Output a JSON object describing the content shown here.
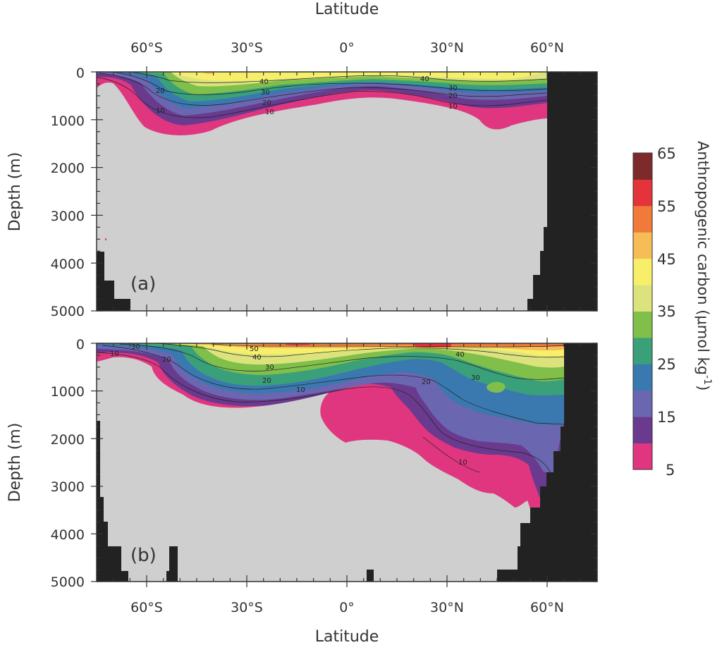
{
  "chart_data": [
    {
      "panel": "(a)",
      "type": "heatmap",
      "title": "",
      "xlabel": "Latitude",
      "ylabel": "Depth (m)",
      "xlim": [
        -75,
        75
      ],
      "ylim": [
        5000,
        0
      ],
      "x_tick_labels": [
        "60°S",
        "30°S",
        "0°",
        "30°N",
        "60°N"
      ],
      "y_tick_labels": [
        "0",
        "1000",
        "2000",
        "3000",
        "4000",
        "5000"
      ],
      "contour_labels": [
        "40",
        "30",
        "20",
        "10",
        "40",
        "30",
        "20",
        "10"
      ],
      "contours": [
        {
          "level": 40,
          "depths": [
            [
              -65,
              0
            ],
            [
              -55,
              40
            ],
            [
              -45,
              120
            ],
            [
              -30,
              140
            ],
            [
              -15,
              120
            ],
            [
              0,
              110
            ],
            [
              15,
              120
            ],
            [
              30,
              140
            ],
            [
              45,
              160
            ],
            [
              60,
              110
            ]
          ]
        },
        {
          "level": 30,
          "depths": [
            [
              -65,
              10
            ],
            [
              -55,
              150
            ],
            [
              -45,
              280
            ],
            [
              -30,
              340
            ],
            [
              -15,
              300
            ],
            [
              0,
              280
            ],
            [
              15,
              300
            ],
            [
              30,
              350
            ],
            [
              45,
              380
            ],
            [
              60,
              300
            ]
          ]
        },
        {
          "level": 20,
          "depths": [
            [
              -65,
              30
            ],
            [
              -55,
              300
            ],
            [
              -45,
              500
            ],
            [
              -30,
              580
            ],
            [
              -15,
              450
            ],
            [
              0,
              380
            ],
            [
              15,
              400
            ],
            [
              30,
              500
            ],
            [
              45,
              560
            ],
            [
              60,
              450
            ]
          ]
        },
        {
          "level": 10,
          "depths": [
            [
              -68,
              50
            ],
            [
              -58,
              400
            ],
            [
              -45,
              800
            ],
            [
              -30,
              820
            ],
            [
              -15,
              650
            ],
            [
              0,
              550
            ],
            [
              15,
              580
            ],
            [
              30,
              720
            ],
            [
              45,
              800
            ],
            [
              60,
              650
            ]
          ]
        },
        {
          "level": 5,
          "depths": [
            [
              -72,
              200
            ],
            [
              -62,
              650
            ],
            [
              -50,
              1300
            ],
            [
              -35,
              1250
            ],
            [
              -15,
              900
            ],
            [
              0,
              700
            ],
            [
              10,
              650
            ],
            [
              30,
              850
            ],
            [
              45,
              1200
            ],
            [
              60,
              950
            ]
          ]
        }
      ]
    },
    {
      "panel": "(b)",
      "type": "heatmap",
      "title": "",
      "xlabel": "Latitude",
      "ylabel": "Depth (m)",
      "xlim": [
        -75,
        75
      ],
      "ylim": [
        5000,
        0
      ],
      "x_tick_labels": [
        "60°S",
        "30°S",
        "0°",
        "30°N",
        "60°N"
      ],
      "y_tick_labels": [
        "0",
        "1000",
        "2000",
        "3000",
        "4000",
        "5000"
      ],
      "contour_labels": [
        "30",
        "10",
        "20",
        "50",
        "40",
        "30",
        "20",
        "10",
        "40",
        "30",
        "20",
        "10"
      ],
      "contours": [
        {
          "level": 50,
          "depths": [
            [
              -30,
              0
            ],
            [
              -20,
              40
            ],
            [
              0,
              20
            ],
            [
              20,
              30
            ],
            [
              40,
              40
            ],
            [
              64,
              20
            ]
          ]
        },
        {
          "level": 40,
          "depths": [
            [
              -55,
              0
            ],
            [
              -45,
              60
            ],
            [
              -30,
              200
            ],
            [
              -15,
              200
            ],
            [
              0,
              150
            ],
            [
              20,
              180
            ],
            [
              40,
              280
            ],
            [
              64,
              180
            ]
          ]
        },
        {
          "level": 30,
          "depths": [
            [
              -55,
              10
            ],
            [
              -45,
              250
            ],
            [
              -30,
              450
            ],
            [
              -15,
              350
            ],
            [
              0,
              300
            ],
            [
              20,
              420
            ],
            [
              40,
              700
            ],
            [
              64,
              650
            ]
          ]
        },
        {
          "level": 20,
          "depths": [
            [
              -60,
              20
            ],
            [
              -50,
              450
            ],
            [
              -35,
              800
            ],
            [
              -20,
              650
            ],
            [
              0,
              500
            ],
            [
              20,
              700
            ],
            [
              35,
              1400
            ],
            [
              64,
              1800
            ]
          ]
        },
        {
          "level": 10,
          "depths": [
            [
              -65,
              50
            ],
            [
              -55,
              700
            ],
            [
              -40,
              1200
            ],
            [
              -20,
              1000
            ],
            [
              0,
              700
            ],
            [
              20,
              900
            ],
            [
              35,
              2100
            ],
            [
              60,
              2600
            ]
          ]
        },
        {
          "level": 5,
          "depths": [
            [
              -72,
              300
            ],
            [
              -60,
              1000
            ],
            [
              -45,
              1400
            ],
            [
              -20,
              1200
            ],
            [
              -10,
              1600
            ],
            [
              0,
              2000
            ],
            [
              20,
              2600
            ],
            [
              40,
              3200
            ],
            [
              55,
              3400
            ]
          ]
        }
      ]
    }
  ],
  "colorbar": {
    "label": "Anthropogenic carbon (μmol kg",
    "label_superscript": "-1",
    "label_close": ")",
    "tick_labels": [
      "65",
      "55",
      "45",
      "35",
      "25",
      "15",
      "5"
    ],
    "levels": [
      5,
      10,
      15,
      20,
      25,
      30,
      35,
      40,
      45,
      50,
      55,
      60,
      65
    ],
    "colors": [
      "#e0367f",
      "#6a3a8e",
      "#6b66b0",
      "#3a78b0",
      "#3aa07a",
      "#7fbf4a",
      "#dce37d",
      "#f7ef6a",
      "#f6bd56",
      "#f17a3a",
      "#e4333a",
      "#7e2a2a"
    ]
  },
  "colors": {
    "background": "#cfcfcf",
    "land": "#222222",
    "frame": "#333333"
  }
}
